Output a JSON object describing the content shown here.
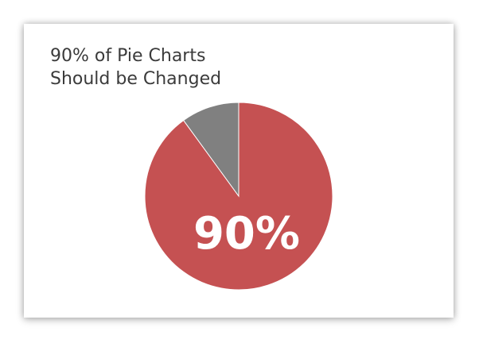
{
  "title_lines": [
    "90% of Pie Charts",
    "Should be Changed"
  ],
  "colors": {
    "primary": "#c55152",
    "secondary": "#808080",
    "label": "#ffffff",
    "title": "#3b3b3b"
  },
  "chart_data": {
    "type": "pie",
    "title": "90% of Pie Charts Should be Changed",
    "slices": [
      {
        "label": "90%",
        "value": 90,
        "color": "#c55152"
      },
      {
        "label": "",
        "value": 10,
        "color": "#808080"
      }
    ],
    "slice_label": "90%",
    "legend": "none"
  }
}
